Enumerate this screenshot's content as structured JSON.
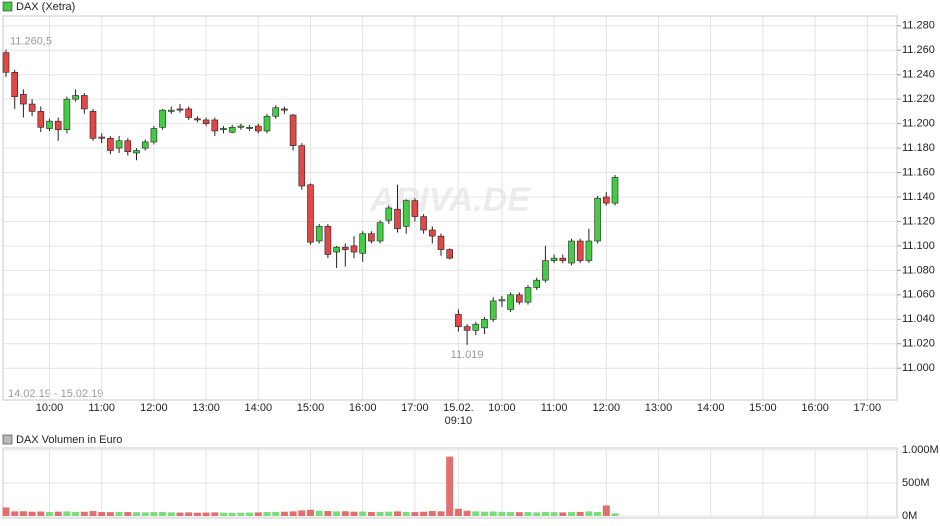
{
  "chart_data": [
    {
      "type": "candlestick",
      "legend": "DAX (Xetra)",
      "date_range": "14.02.19 - 15.02.19",
      "watermark": "ARIVA.DE",
      "up_color": "#44cc44",
      "down_color": "#e04848",
      "grid": true,
      "categories": [
        null,
        null,
        null,
        null,
        null,
        "10:00",
        null,
        null,
        null,
        null,
        null,
        "11:00",
        null,
        null,
        null,
        null,
        null,
        "12:00",
        null,
        null,
        null,
        null,
        null,
        "13:00",
        null,
        null,
        null,
        null,
        null,
        "14:00",
        null,
        null,
        null,
        null,
        null,
        "15:00",
        null,
        null,
        null,
        null,
        null,
        "16:00",
        null,
        null,
        null,
        null,
        null,
        "17:00",
        null,
        null,
        null,
        null,
        "15.02.\n09:10",
        null,
        null,
        null,
        null,
        "10:00",
        null,
        null,
        null,
        null,
        null,
        "11:00",
        null,
        null,
        null,
        null,
        null,
        "12:00",
        null,
        null,
        null,
        null,
        null,
        "13:00",
        null,
        null,
        null,
        null,
        null,
        "14:00",
        null,
        null,
        null,
        null,
        null,
        "15:00",
        null,
        null,
        null,
        null,
        null,
        "16:00",
        null,
        null,
        null,
        null,
        null,
        "17:00",
        null,
        null,
        null
      ],
      "open": [
        11258,
        11242,
        11224,
        11216,
        11210,
        11196,
        11202,
        11195,
        11220,
        11223,
        11210,
        11189,
        11188,
        11180,
        11186,
        11176,
        11180,
        11185,
        11197,
        11210,
        11212,
        11212,
        11204,
        11203,
        11203,
        11195,
        11193,
        11197,
        11196,
        11198,
        11194,
        11206,
        11212,
        11207,
        11182,
        11150,
        11104,
        11116,
        11095,
        11099,
        11100,
        11094,
        11110,
        11104,
        11121,
        11130,
        11116,
        11137,
        11124,
        11113,
        11108,
        11097,
        11044,
        11034,
        11031,
        11033,
        11040,
        11055,
        11048,
        11060,
        11054,
        11066,
        11072,
        11088,
        11090,
        11086,
        11104,
        11088,
        11104,
        11140,
        11135,
        null,
        null,
        null,
        null,
        null,
        null,
        null,
        null,
        null,
        null,
        null,
        null,
        null,
        null,
        null,
        null,
        null,
        null,
        null,
        null,
        null,
        null,
        null,
        null,
        null,
        null,
        null,
        null,
        null,
        null,
        null,
        null
      ],
      "high": [
        11260.5,
        11244,
        11228,
        11220,
        11214,
        11204,
        11205,
        11222,
        11228,
        11225,
        11212,
        11192,
        11190,
        11190,
        11188,
        11180,
        11187,
        11198,
        11212,
        11214,
        11216,
        11214,
        11206,
        11205,
        11205,
        11198,
        11199,
        11200,
        11199,
        11200,
        11208,
        11215,
        11214,
        11208,
        11184,
        11151,
        11118,
        11118,
        11100,
        11102,
        11108,
        11112,
        11112,
        11121,
        11133,
        11150,
        11138,
        11139,
        11126,
        11116,
        11110,
        11098,
        11048,
        11036,
        11038,
        11042,
        11058,
        11059,
        11062,
        11062,
        11068,
        11074,
        11100,
        11093,
        11093,
        11106,
        11106,
        11114,
        11141,
        11144,
        11158,
        null,
        null,
        null,
        null,
        null,
        null,
        null,
        null,
        null,
        null,
        null,
        null,
        null,
        null,
        null,
        null,
        null,
        null,
        null,
        null,
        null,
        null,
        null,
        null,
        null,
        null,
        null,
        null,
        null,
        null,
        null,
        null
      ],
      "low": [
        11238,
        11212,
        11205,
        11206,
        11193,
        11194,
        11186,
        11192,
        11218,
        11208,
        11186,
        11184,
        11175,
        11176,
        11174,
        11170,
        11178,
        11183,
        11195,
        11208,
        11209,
        11203,
        11201,
        11198,
        11190,
        11192,
        11192,
        11195,
        11194,
        11192,
        11192,
        11204,
        11208,
        11178,
        11146,
        11101,
        11102,
        11090,
        11082,
        11083,
        11090,
        11087,
        11102,
        11102,
        11118,
        11111,
        11110,
        11120,
        11110,
        11102,
        11092,
        11089,
        11030,
        11019,
        11027,
        11028,
        11038,
        11050,
        11046,
        11052,
        11052,
        11064,
        11070,
        11086,
        11086,
        11084,
        11086,
        11086,
        11102,
        11133,
        11133,
        null,
        null,
        null,
        null,
        null,
        null,
        null,
        null,
        null,
        null,
        null,
        null,
        null,
        null,
        null,
        null,
        null,
        null,
        null,
        null,
        null,
        null,
        null,
        null,
        null,
        null,
        null,
        null,
        null,
        null,
        null,
        null
      ],
      "close": [
        11242,
        11222,
        11216,
        11210,
        11197,
        11202,
        11195,
        11220,
        11223,
        11212,
        11188,
        11188,
        11178,
        11186,
        11177,
        11178,
        11185,
        11196,
        11211,
        11211,
        11211,
        11205,
        11203,
        11200,
        11194,
        11196,
        11197,
        11198,
        11197,
        11194,
        11206,
        11213,
        11211,
        11182,
        11149,
        11103,
        11116,
        11093,
        11099,
        11097,
        11095,
        11110,
        11104,
        11119,
        11131,
        11114,
        11137,
        11124,
        11113,
        11108,
        11097,
        11090,
        11034,
        11031,
        11036,
        11040,
        11055,
        11056,
        11060,
        11054,
        11066,
        11072,
        11088,
        11090,
        11088,
        11104,
        11088,
        11104,
        11139,
        11135,
        11156,
        null,
        null,
        null,
        null,
        null,
        null,
        null,
        null,
        null,
        null,
        null,
        null,
        null,
        null,
        null,
        null,
        null,
        null,
        null,
        null,
        null,
        null,
        null,
        null,
        null,
        null,
        null,
        null,
        null,
        null,
        null,
        null
      ],
      "annotations": [
        {
          "label": "11.260,5",
          "value": 11260.5
        },
        {
          "label": "11.019",
          "value": 11019
        }
      ],
      "ylim": [
        10974,
        11288
      ],
      "yticks": [
        {
          "value": 11000,
          "label": "11.000"
        },
        {
          "value": 11020,
          "label": "11.020"
        },
        {
          "value": 11040,
          "label": "11.040"
        },
        {
          "value": 11060,
          "label": "11.060"
        },
        {
          "value": 11080,
          "label": "11.080"
        },
        {
          "value": 11100,
          "label": "11.100"
        },
        {
          "value": 11120,
          "label": "11.120"
        },
        {
          "value": 11140,
          "label": "11.140"
        },
        {
          "value": 11160,
          "label": "11.160"
        },
        {
          "value": 11180,
          "label": "11.180"
        },
        {
          "value": 11200,
          "label": "11.200"
        },
        {
          "value": 11220,
          "label": "11.220"
        },
        {
          "value": 11240,
          "label": "11.240"
        },
        {
          "value": 11260,
          "label": "11.260"
        },
        {
          "value": 11280,
          "label": "11.280"
        }
      ]
    },
    {
      "type": "bar",
      "legend": "DAX Volumen in Euro",
      "up_color": "#7bdc7b",
      "down_color": "#e07070",
      "values": [
        130,
        70,
        72,
        65,
        68,
        60,
        66,
        70,
        62,
        64,
        75,
        60,
        58,
        62,
        60,
        58,
        55,
        60,
        62,
        55,
        52,
        55,
        50,
        52,
        55,
        50,
        48,
        50,
        52,
        55,
        60,
        62,
        65,
        70,
        85,
        95,
        80,
        75,
        70,
        72,
        65,
        68,
        60,
        62,
        65,
        70,
        62,
        60,
        65,
        75,
        70,
        900,
        110,
        80,
        70,
        65,
        68,
        62,
        60,
        58,
        60,
        55,
        62,
        58,
        55,
        60,
        62,
        70,
        60,
        160,
        40
      ],
      "ylim": [
        0,
        1030
      ],
      "yticks": [
        {
          "value": 0,
          "label": "0M"
        },
        {
          "value": 500,
          "label": "500M"
        },
        {
          "value": 1000,
          "label": "1.000M"
        }
      ]
    }
  ]
}
